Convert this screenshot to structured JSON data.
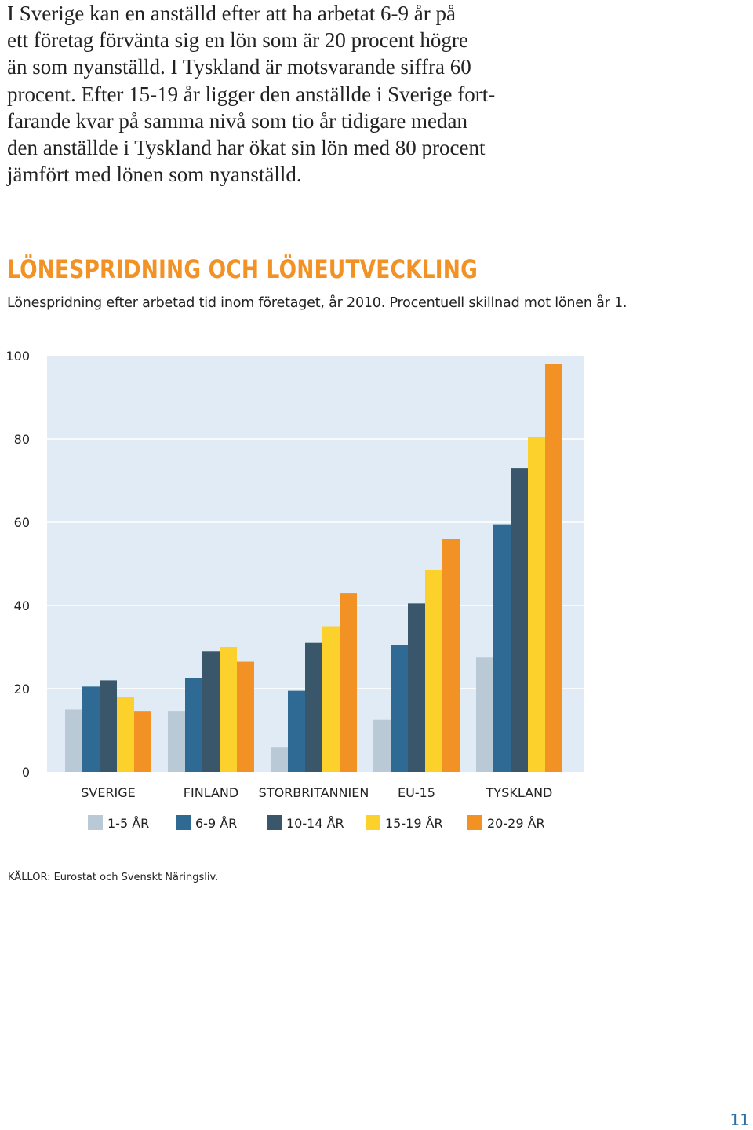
{
  "intro_lines": [
    "I Sverige kan en anställd efter att ha arbetat 6-9 år på",
    "ett företag förvänta sig en lön som är 20 procent högre",
    "än som nyanställd. I Tyskland är motsvarande siffra 60",
    "procent. Efter 15-19 år ligger den anställde i Sverige fort-",
    "farande kvar på samma nivå som tio år tidigare medan",
    "den anställde i Tyskland har ökat sin lön med 80 procent",
    "jämfört med lönen som nyanställd."
  ],
  "chart_title": "LÖNESPRIDNING OCH LÖNEUTVECKLING",
  "chart_subtitle": "Lönespridning efter arbetad tid inom företaget, år 2010. Procentuell skillnad mot lönen år 1.",
  "source": "KÄLLOR: Eurostat och Svenskt Näringsliv.",
  "page_number": "11",
  "chart_data": {
    "type": "bar",
    "categories": [
      "SVERIGE",
      "FINLAND",
      "STORBRITANNIEN",
      "EU-15",
      "TYSKLAND"
    ],
    "series": [
      {
        "name": "1-5 ÅR",
        "color": "#b9c9d6",
        "values": [
          15,
          14.5,
          6,
          12.5,
          27.5
        ]
      },
      {
        "name": "6-9 ÅR",
        "color": "#2e6a94",
        "values": [
          20.5,
          22.5,
          19.5,
          30.5,
          59.5
        ]
      },
      {
        "name": "10-14 ÅR",
        "color": "#3a566b",
        "values": [
          22,
          29,
          31,
          40.5,
          73
        ]
      },
      {
        "name": "15-19 ÅR",
        "color": "#fdd12c",
        "values": [
          18,
          30,
          35,
          48.5,
          80.5
        ]
      },
      {
        "name": "20-29 ÅR",
        "color": "#f29224",
        "values": [
          14.5,
          26.5,
          43,
          56,
          98
        ]
      }
    ],
    "yticks": [
      "0",
      "20",
      "40",
      "60",
      "80",
      "100"
    ],
    "ylim": [
      0,
      100
    ],
    "grid": true,
    "legend_position": "bottom",
    "plot_background": "#e1ebf5"
  }
}
